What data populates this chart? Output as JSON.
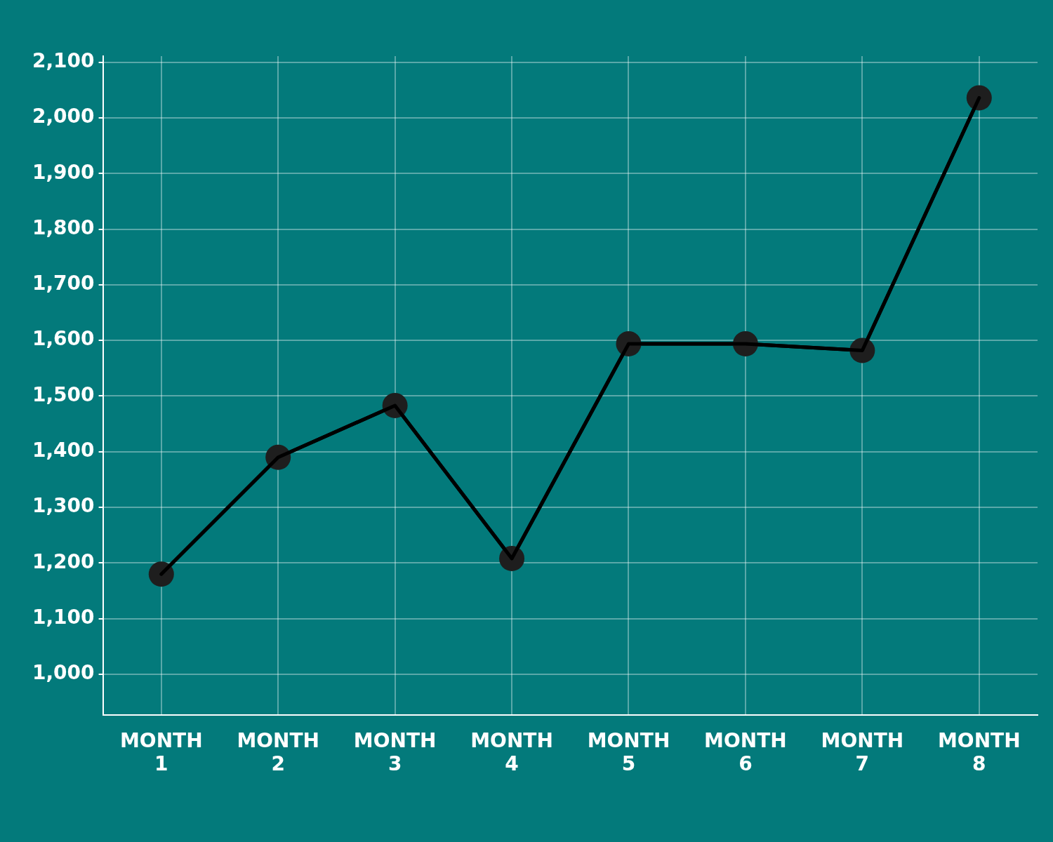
{
  "chart_data": {
    "type": "line",
    "categories": [
      "MONTH 1",
      "MONTH 2",
      "MONTH 3",
      "MONTH 4",
      "MONTH 5",
      "MONTH 6",
      "MONTH 7",
      "MONTH 8"
    ],
    "series": [
      {
        "color": "#000000",
        "values": [
          1180,
          1390,
          1483,
          1208,
          1594,
          1594,
          1582,
          2036
        ]
      }
    ],
    "ylim": [
      927,
      2111
    ],
    "yticks": [
      {
        "value": 1000,
        "label": "1,000"
      },
      {
        "value": 1100,
        "label": "1,100"
      },
      {
        "value": 1200,
        "label": "1,200"
      },
      {
        "value": 1300,
        "label": "1,300"
      },
      {
        "value": 1400,
        "label": "1,400"
      },
      {
        "value": 1500,
        "label": "1,500"
      },
      {
        "value": 1600,
        "label": "1,600"
      },
      {
        "value": 1700,
        "label": "1,700"
      },
      {
        "value": 1800,
        "label": "1,800"
      },
      {
        "value": 1900,
        "label": "1,900"
      },
      {
        "value": 2000,
        "label": "2,000"
      },
      {
        "value": 2100,
        "label": "2,100"
      }
    ],
    "grid": true,
    "marker": "circle",
    "line_style": "solid",
    "legend": false
  }
}
